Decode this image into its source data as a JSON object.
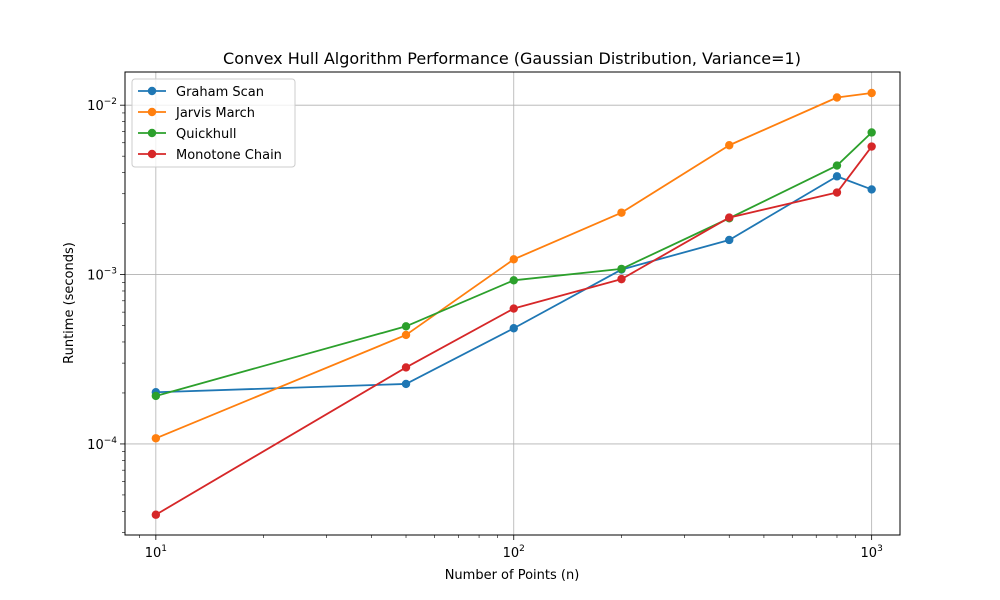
{
  "chart_data": {
    "type": "line",
    "title": "Convex Hull Algorithm Performance (Gaussian Distribution, Variance=1)",
    "xlabel": "Number of Points (n)",
    "ylabel": "Runtime (seconds)",
    "xscale": "log",
    "yscale": "log",
    "xlim": [
      8.2,
      1200
    ],
    "ylim": [
      2.9e-05,
      0.0157
    ],
    "grid": true,
    "legend_position": "upper-left",
    "x": [
      10,
      50,
      100,
      200,
      400,
      800,
      1000
    ],
    "x_ticks": [
      {
        "value": 10,
        "base": "10",
        "exp": "1"
      },
      {
        "value": 100,
        "base": "10",
        "exp": "2"
      },
      {
        "value": 1000,
        "base": "10",
        "exp": "3"
      }
    ],
    "y_ticks": [
      {
        "value": 0.0001,
        "base": "10",
        "exp": "−4"
      },
      {
        "value": 0.001,
        "base": "10",
        "exp": "−3"
      },
      {
        "value": 0.01,
        "base": "10",
        "exp": "−2"
      }
    ],
    "series": [
      {
        "name": "Graham Scan",
        "color": "#1f77b4",
        "values": [
          0.000202,
          0.000226,
          0.000482,
          0.00107,
          0.0016,
          0.0038,
          0.00318
        ]
      },
      {
        "name": "Jarvis March",
        "color": "#ff7f0e",
        "values": [
          0.000108,
          0.00044,
          0.00123,
          0.00232,
          0.0058,
          0.0111,
          0.0118
        ]
      },
      {
        "name": "Quickhull",
        "color": "#2ca02c",
        "values": [
          0.000192,
          0.000495,
          0.000925,
          0.00108,
          0.00215,
          0.0044,
          0.0069
        ]
      },
      {
        "name": "Monotone Chain",
        "color": "#d62728",
        "values": [
          3.82e-05,
          0.000283,
          0.00063,
          0.00094,
          0.00217,
          0.00305,
          0.0057
        ]
      }
    ]
  }
}
